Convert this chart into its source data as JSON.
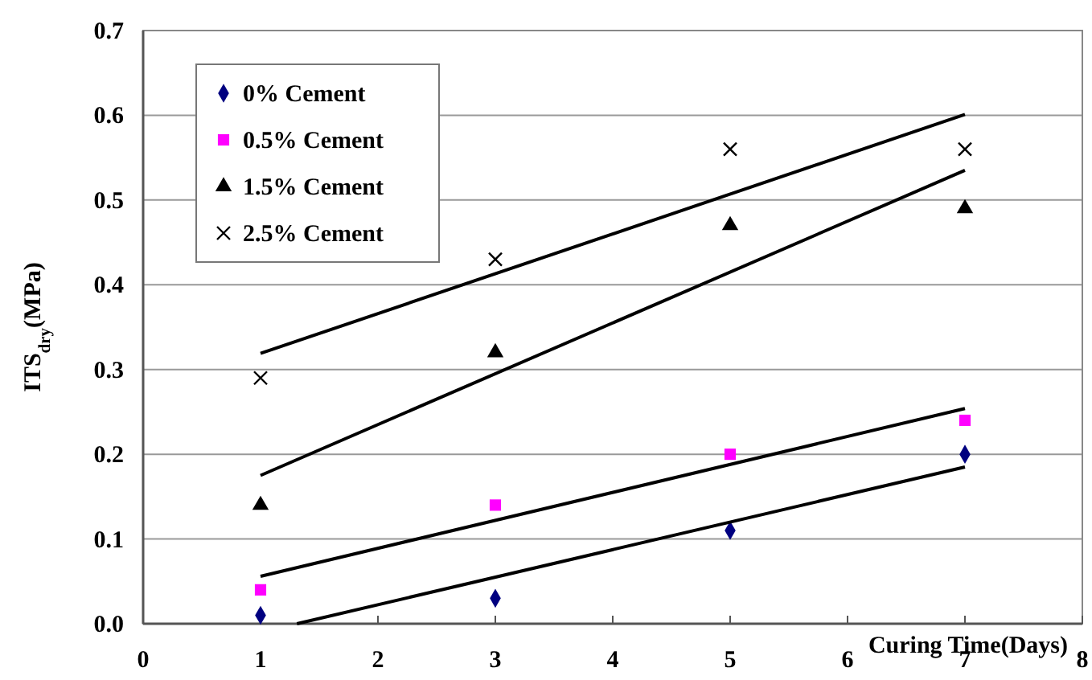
{
  "chart_data": {
    "type": "scatter",
    "xlabel": "Curing Time(Days)",
    "ylabel": "ITS$_{dry}$(MPa)",
    "x": [
      1,
      3,
      5,
      7
    ],
    "series": [
      {
        "name": "0% Cement",
        "color": "#000080",
        "marker": "diamond",
        "values": [
          0.01,
          0.03,
          0.11,
          0.2
        ]
      },
      {
        "name": "0.5% Cement",
        "color": "#ff00ff",
        "marker": "square",
        "values": [
          0.04,
          0.14,
          0.2,
          0.24
        ]
      },
      {
        "name": "1.5% Cement",
        "color": "#000000",
        "marker": "triangle",
        "values": [
          0.14,
          0.32,
          0.47,
          0.49
        ]
      },
      {
        "name": "2.5% Cement",
        "color": "#000000",
        "marker": "cross",
        "values": [
          0.29,
          0.43,
          0.56,
          0.56
        ]
      },
      {
        "type": "line",
        "color": "#000000",
        "marker": "none",
        "x": [
          1.31,
          7
        ],
        "values": [
          0,
          0.185
        ]
      },
      {
        "type": "line",
        "color": "#000000",
        "marker": "none",
        "x": [
          1,
          7
        ],
        "values": [
          0.056,
          0.254
        ]
      },
      {
        "type": "line",
        "color": "#000000",
        "marker": "none",
        "x": [
          1,
          7
        ],
        "values": [
          0.175,
          0.535
        ]
      },
      {
        "type": "line",
        "color": "#000000",
        "marker": "none",
        "x": [
          1,
          7
        ],
        "values": [
          0.319,
          0.601
        ]
      }
    ],
    "xlim": [
      0,
      8
    ],
    "xticks": [
      0,
      1,
      2,
      3,
      4,
      5,
      6,
      7,
      8
    ],
    "ylim": [
      0,
      0.7
    ],
    "yticks": [
      {
        "value": 0,
        "label": "0.0"
      },
      0.1,
      0.2,
      0.3,
      0.4,
      0.5,
      0.6,
      0.7
    ],
    "grid": "y",
    "legend": "top left"
  }
}
